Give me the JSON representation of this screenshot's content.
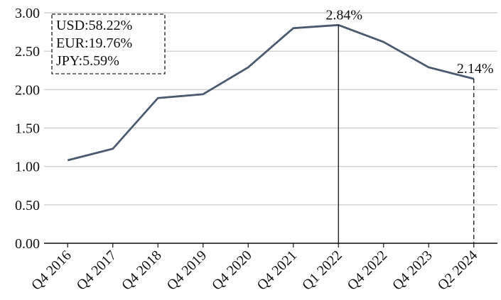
{
  "chart_data": {
    "type": "line",
    "categories": [
      "Q4 2016",
      "Q4 2017",
      "Q4 2018",
      "Q4 2019",
      "Q4 2020",
      "Q4 2021",
      "Q1 2022",
      "Q4 2022",
      "Q4 2023",
      "Q2 2024"
    ],
    "series": [
      {
        "color": "#4b5a6e",
        "values": [
          1.08,
          1.23,
          1.89,
          1.94,
          2.29,
          2.8,
          2.84,
          2.62,
          2.29,
          2.14
        ],
        "value_labels": [
          null,
          null,
          null,
          null,
          null,
          null,
          "2.84%",
          null,
          null,
          "2.14%"
        ]
      }
    ],
    "ylim": [
      0,
      3
    ],
    "yticks": [
      {
        "value": 0,
        "label": "0.00"
      },
      {
        "value": 0.5,
        "label": "0.50"
      },
      {
        "value": 1,
        "label": "1.00"
      },
      {
        "value": 1.5,
        "label": "1.50"
      },
      {
        "value": 2,
        "label": "2.00"
      },
      {
        "value": 2.5,
        "label": "2.50"
      },
      {
        "value": 3,
        "label": "3.00"
      }
    ],
    "grid": true,
    "annotations": [
      "USD:58.22%",
      "EUR:19.76%",
      "JPY:5.59%"
    ]
  }
}
